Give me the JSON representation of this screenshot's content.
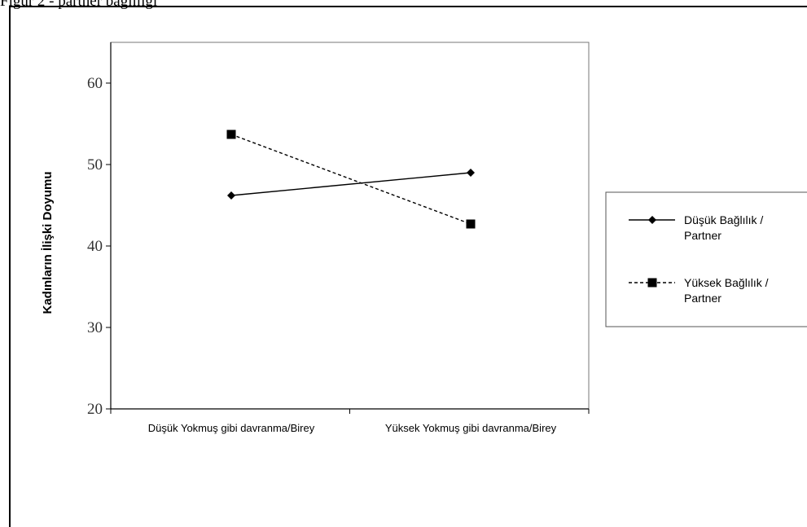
{
  "top_caption": "Figür 2 - partner bağlılığı",
  "chart_data": {
    "type": "line",
    "title": "",
    "xlabel": "",
    "ylabel": "Kadınların İlişki Doyumu",
    "categories": [
      "Düşük Yokmuş gibi davranma/Birey",
      "Yüksek Yokmuş gibi davranma/Birey"
    ],
    "ylim": [
      20,
      65
    ],
    "yticks": [
      20,
      30,
      40,
      50,
      60
    ],
    "grid": false,
    "legend_position": "right",
    "series": [
      {
        "name_lines": [
          "Düşük Bağlılık /",
          "Partner"
        ],
        "values": [
          46.2,
          49.0
        ],
        "marker": "diamond",
        "line_style": "solid",
        "color": "#000000"
      },
      {
        "name_lines": [
          "Yüksek Bağlılık /",
          "Partner"
        ],
        "values": [
          53.7,
          42.7
        ],
        "marker": "square",
        "line_style": "dashed",
        "color": "#000000"
      }
    ]
  }
}
